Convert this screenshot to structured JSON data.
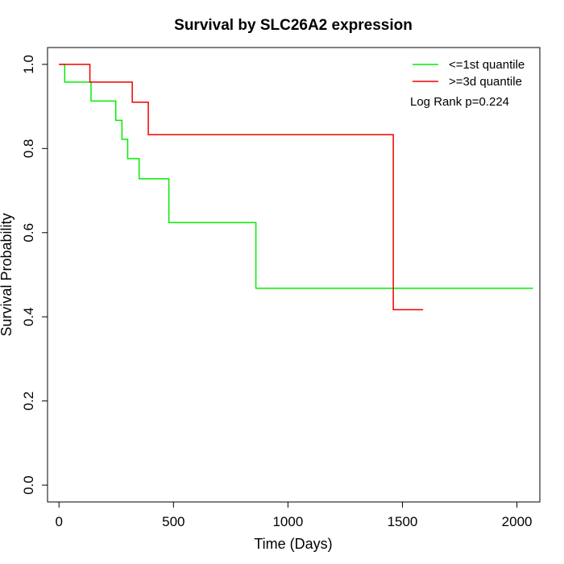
{
  "chart_data": {
    "type": "line",
    "title": "Survival by SLC26A2 expression",
    "xlabel": "Time (Days)",
    "ylabel": "Survival Probability",
    "xlim": [
      -50,
      2100
    ],
    "ylim": [
      -0.04,
      1.04
    ],
    "x_ticks": [
      0,
      500,
      1000,
      1500,
      2000
    ],
    "y_ticks": [
      0.0,
      0.2,
      0.4,
      0.6,
      0.8,
      1.0
    ],
    "x_tick_labels": [
      "0",
      "500",
      "1000",
      "1500",
      "2000"
    ],
    "y_tick_labels": [
      "0.0",
      "0.2",
      "0.4",
      "0.6",
      "0.8",
      "1.0"
    ],
    "grid": false,
    "legend_position": "top-right",
    "annotation": "Log Rank p=0.224",
    "series": [
      {
        "name": "<=1st quantile",
        "color": "#00ee00",
        "step": true,
        "x": [
          0,
          25,
          140,
          248,
          275,
          300,
          350,
          480,
          860,
          2070
        ],
        "y": [
          1.0,
          0.958,
          0.913,
          0.867,
          0.822,
          0.776,
          0.728,
          0.624,
          0.468,
          0.468
        ]
      },
      {
        "name": ">=3d quantile",
        "color": "#ee0000",
        "step": true,
        "x": [
          0,
          135,
          320,
          390,
          1460,
          1590
        ],
        "y": [
          1.0,
          0.958,
          0.91,
          0.833,
          0.417,
          0.417
        ]
      }
    ]
  }
}
